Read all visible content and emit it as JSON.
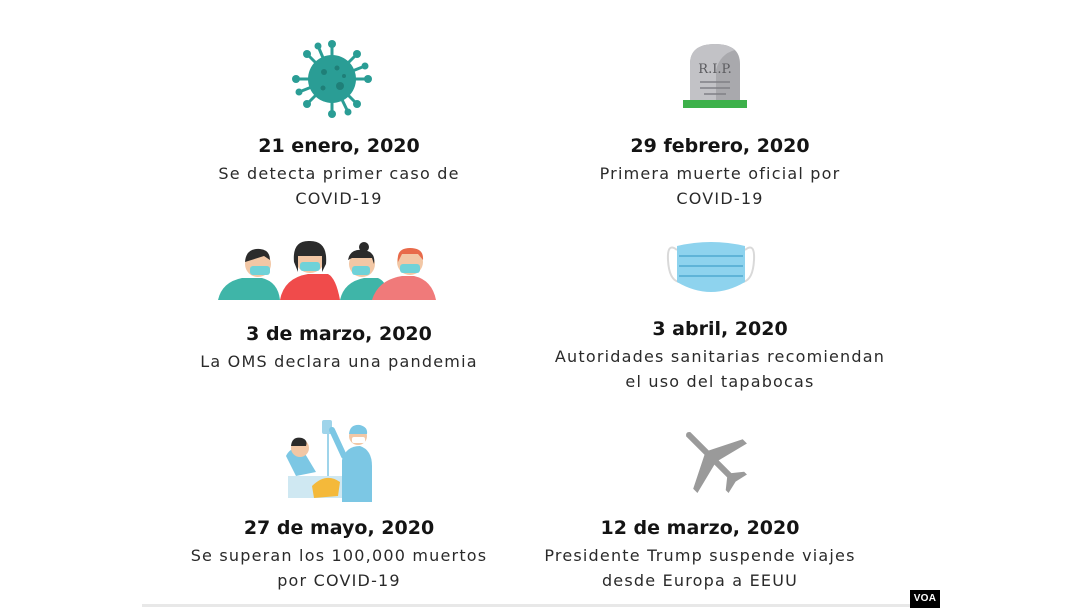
{
  "events": [
    {
      "id": "e1",
      "date": "21 enero, 2020",
      "line1": "Se detecta primer caso de",
      "line2": "COVID-19",
      "icon": "virus-icon",
      "color": "#2a9d95"
    },
    {
      "id": "e2",
      "date": "29 febrero, 2020",
      "line1": "Primera muerte oficial por",
      "line2": "COVID-19",
      "icon": "tombstone-icon",
      "color": "#3db14a",
      "icon_text": "R.I.P."
    },
    {
      "id": "e3",
      "date": "3 de marzo, 2020",
      "line1": "La OMS declara una pandemia",
      "line2": "",
      "icon": "masked-people-icon",
      "color": "#f04b4b"
    },
    {
      "id": "e4",
      "date": "3 abril, 2020",
      "line1": "Autoridades sanitarias recomiendan",
      "line2": "el uso del tapabocas",
      "icon": "face-mask-icon",
      "color": "#8ed3ee"
    },
    {
      "id": "e5",
      "date": "27 de mayo, 2020",
      "line1": "Se superan los 100,000 muertos",
      "line2": "por COVID-19",
      "icon": "hospital-patient-icon",
      "color": "#7cc7e4"
    },
    {
      "id": "e6",
      "date": "12 de marzo, 2020",
      "line1": "Presidente Trump suspende viajes",
      "line2": "desde Europa a EEUU",
      "icon": "airplane-icon",
      "color": "#9a9a9a"
    }
  ],
  "watermark": "VOA"
}
